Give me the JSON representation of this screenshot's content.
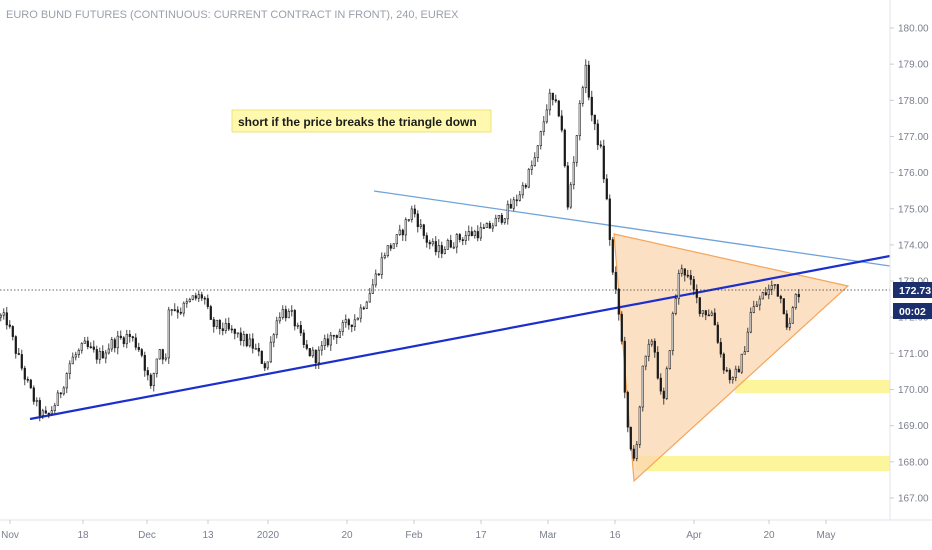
{
  "chart_data": {
    "type": "candlestick",
    "title": "EURO BUND FUTURES (CONTINUOUS: CURRENT CONTRACT IN FRONT), 240, EUREX",
    "annotation": "short if the price breaks the triangle down",
    "y_axis": {
      "ticks": [
        "180.00",
        "179.00",
        "178.00",
        "177.00",
        "176.00",
        "175.00",
        "174.00",
        "173.00",
        "172.00",
        "171.00",
        "170.00",
        "169.00",
        "168.00",
        "167.00"
      ],
      "range": [
        166.4,
        180.3
      ]
    },
    "x_axis": {
      "ticks": [
        "Nov",
        "18",
        "Dec",
        "13",
        "2020",
        "20",
        "Feb",
        "17",
        "Mar",
        "16",
        "Apr",
        "20",
        "May"
      ]
    },
    "current_price": {
      "value": "172.73",
      "countdown": "00:02",
      "color": "#1a2f6b"
    },
    "colors": {
      "candle": "#1a1a1a",
      "trend_dark": "#1c2fcc",
      "trend_light": "#6fa3d8",
      "triangle": "#f5a55a",
      "zone": "#fdf38a"
    },
    "price_path": [
      {
        "t": 0,
        "p": 172.0
      },
      {
        "t": 6,
        "p": 171.9
      },
      {
        "t": 16,
        "p": 171.0
      },
      {
        "t": 26,
        "p": 170.2
      },
      {
        "t": 38,
        "p": 169.4
      },
      {
        "t": 46,
        "p": 169.2
      },
      {
        "t": 58,
        "p": 169.8
      },
      {
        "t": 70,
        "p": 170.8
      },
      {
        "t": 84,
        "p": 171.2
      },
      {
        "t": 98,
        "p": 170.9
      },
      {
        "t": 112,
        "p": 171.3
      },
      {
        "t": 128,
        "p": 171.5
      },
      {
        "t": 140,
        "p": 171.1
      },
      {
        "t": 150,
        "p": 170.0
      },
      {
        "t": 158,
        "p": 171.2
      },
      {
        "t": 165,
        "p": 170.8
      },
      {
        "t": 168,
        "p": 172.3
      },
      {
        "t": 180,
        "p": 172.2
      },
      {
        "t": 192,
        "p": 172.5
      },
      {
        "t": 203,
        "p": 172.6
      },
      {
        "t": 210,
        "p": 171.8
      },
      {
        "t": 222,
        "p": 171.7
      },
      {
        "t": 236,
        "p": 171.5
      },
      {
        "t": 252,
        "p": 171.2
      },
      {
        "t": 266,
        "p": 170.6
      },
      {
        "t": 272,
        "p": 171.6
      },
      {
        "t": 280,
        "p": 172.2
      },
      {
        "t": 292,
        "p": 172.0
      },
      {
        "t": 304,
        "p": 171.1
      },
      {
        "t": 316,
        "p": 170.9
      },
      {
        "t": 328,
        "p": 171.4
      },
      {
        "t": 342,
        "p": 171.7
      },
      {
        "t": 356,
        "p": 172.0
      },
      {
        "t": 372,
        "p": 172.9
      },
      {
        "t": 384,
        "p": 173.8
      },
      {
        "t": 398,
        "p": 174.2
      },
      {
        "t": 412,
        "p": 175.0
      },
      {
        "t": 424,
        "p": 174.2
      },
      {
        "t": 436,
        "p": 173.8
      },
      {
        "t": 452,
        "p": 174.1
      },
      {
        "t": 468,
        "p": 174.3
      },
      {
        "t": 484,
        "p": 174.4
      },
      {
        "t": 498,
        "p": 174.7
      },
      {
        "t": 512,
        "p": 175.1
      },
      {
        "t": 524,
        "p": 175.7
      },
      {
        "t": 536,
        "p": 176.5
      },
      {
        "t": 548,
        "p": 178.1
      },
      {
        "t": 560,
        "p": 177.6
      },
      {
        "t": 567,
        "p": 175.0
      },
      {
        "t": 574,
        "p": 176.6
      },
      {
        "t": 584,
        "p": 179.0
      },
      {
        "t": 592,
        "p": 177.4
      },
      {
        "t": 600,
        "p": 176.6
      },
      {
        "t": 606,
        "p": 175.2
      },
      {
        "t": 612,
        "p": 173.2
      },
      {
        "t": 620,
        "p": 171.7
      },
      {
        "t": 628,
        "p": 168.4
      },
      {
        "t": 634,
        "p": 168.0
      },
      {
        "t": 642,
        "p": 170.5
      },
      {
        "t": 652,
        "p": 171.5
      },
      {
        "t": 662,
        "p": 169.4
      },
      {
        "t": 672,
        "p": 172.0
      },
      {
        "t": 680,
        "p": 173.5
      },
      {
        "t": 690,
        "p": 172.9
      },
      {
        "t": 700,
        "p": 172.2
      },
      {
        "t": 712,
        "p": 172.1
      },
      {
        "t": 722,
        "p": 170.7
      },
      {
        "t": 732,
        "p": 170.2
      },
      {
        "t": 742,
        "p": 170.9
      },
      {
        "t": 750,
        "p": 172.1
      },
      {
        "t": 762,
        "p": 172.6
      },
      {
        "t": 774,
        "p": 172.9
      },
      {
        "t": 782,
        "p": 172.4
      },
      {
        "t": 788,
        "p": 171.6
      },
      {
        "t": 794,
        "p": 172.5
      },
      {
        "t": 798,
        "p": 172.7
      }
    ]
  }
}
